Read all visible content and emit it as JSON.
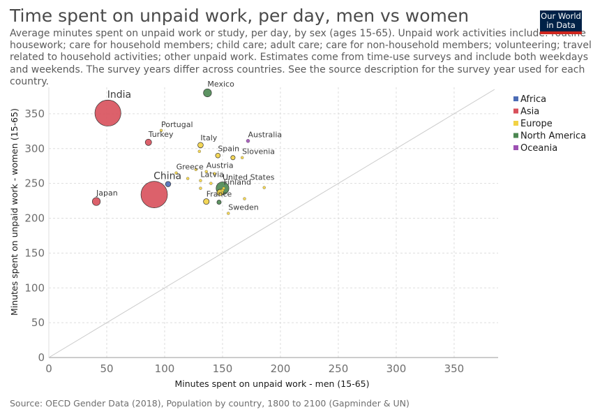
{
  "header": {
    "title": "Time spent on unpaid work, per day, men vs women",
    "subtitle": "Average minutes spent on unpaid work or study, per day, by sex (ages 15-65). Unpaid work activities include: routine housework; care for household members; child care; adult care; care for non-household members; volunteering; travel related to household activities; other unpaid work. Estimates come from time-use surveys and include both weekdays and weekends. The survey years differ across countries. See the source description for the survey year used for each country.",
    "logo_line1": "Our World",
    "logo_line2": "in Data"
  },
  "footer": {
    "source": "Source: OECD Gender Data (2018), Population by country, 1800 to 2100 (Gapminder & UN)"
  },
  "colors": {
    "Africa": "#4c6cb5",
    "Asia": "#d8505b",
    "Europe": "#f2d245",
    "North America": "#4b8751",
    "Oceania": "#9d51b3",
    "reference_line": "#cccccc",
    "grid": "#dddddd"
  },
  "chart_data": {
    "type": "scatter",
    "xlabel": "Minutes spent on unpaid work - men (15-65)",
    "ylabel": "Minutes spent on unpaid work - women (15-65)",
    "xlim": [
      0,
      388
    ],
    "ylim": [
      0,
      388
    ],
    "xticks": [
      0,
      50,
      100,
      150,
      200,
      250,
      300,
      350
    ],
    "yticks": [
      0,
      50,
      100,
      150,
      200,
      250,
      300,
      350
    ],
    "grid": true,
    "reference_line": "y = x",
    "bubble_size": "population",
    "legend_position": "right",
    "legend": [
      "Africa",
      "Asia",
      "Europe",
      "North America",
      "Oceania"
    ],
    "points": [
      {
        "label": "India",
        "region": "Asia",
        "x": 51,
        "y": 351,
        "pop": 1350
      },
      {
        "label": "China",
        "region": "Asia",
        "x": 91,
        "y": 234,
        "pop": 1400
      },
      {
        "label": "Japan",
        "region": "Asia",
        "x": 41,
        "y": 224,
        "pop": 127
      },
      {
        "label": "Turkey",
        "region": "Asia",
        "x": 86,
        "y": 309,
        "pop": 81
      },
      {
        "label": "Mexico",
        "region": "North America",
        "x": 137,
        "y": 380,
        "pop": 129
      },
      {
        "label": "United States",
        "region": "North America",
        "x": 150,
        "y": 243,
        "pop": 327
      },
      {
        "label": "",
        "region": "North America",
        "x": 147,
        "y": 223,
        "pop": 37
      },
      {
        "label": "Australia",
        "region": "Oceania",
        "x": 172,
        "y": 311,
        "pop": 25
      },
      {
        "label": "Portugal",
        "region": "Europe",
        "x": 97,
        "y": 326,
        "pop": 10
      },
      {
        "label": "Italy",
        "region": "Europe",
        "x": 131,
        "y": 305,
        "pop": 60
      },
      {
        "label": "Spain",
        "region": "Europe",
        "x": 146,
        "y": 290,
        "pop": 46
      },
      {
        "label": "Slovenia",
        "region": "Europe",
        "x": 167,
        "y": 287,
        "pop": 2
      },
      {
        "label": "Greece",
        "region": "Europe",
        "x": 110,
        "y": 265,
        "pop": 11
      },
      {
        "label": "Austria",
        "region": "Europe",
        "x": 136,
        "y": 267,
        "pop": 9
      },
      {
        "label": "Latvia",
        "region": "Europe",
        "x": 131,
        "y": 254,
        "pop": 2
      },
      {
        "label": "Finland",
        "region": "Europe",
        "x": 151,
        "y": 243,
        "pop": 5.5
      },
      {
        "label": "France",
        "region": "Europe",
        "x": 136,
        "y": 224,
        "pop": 65
      },
      {
        "label": "Sweden",
        "region": "Europe",
        "x": 155,
        "y": 207,
        "pop": 10
      },
      {
        "label": "",
        "region": "Europe",
        "x": 159,
        "y": 287,
        "pop": 38
      },
      {
        "label": "",
        "region": "Europe",
        "x": 130,
        "y": 296,
        "pop": 5
      },
      {
        "label": "",
        "region": "Europe",
        "x": 148,
        "y": 237,
        "pop": 83
      },
      {
        "label": "",
        "region": "Europe",
        "x": 150,
        "y": 240,
        "pop": 17
      },
      {
        "label": "",
        "region": "Europe",
        "x": 186,
        "y": 244,
        "pop": 5
      },
      {
        "label": "",
        "region": "Europe",
        "x": 169,
        "y": 228,
        "pop": 11
      },
      {
        "label": "",
        "region": "Europe",
        "x": 140,
        "y": 250,
        "pop": 1.3
      },
      {
        "label": "",
        "region": "Europe",
        "x": 127,
        "y": 270,
        "pop": 2.8
      },
      {
        "label": "",
        "region": "Europe",
        "x": 131,
        "y": 243,
        "pop": 1.4
      },
      {
        "label": "",
        "region": "Europe",
        "x": 143,
        "y": 264,
        "pop": 4.8
      },
      {
        "label": "",
        "region": "Europe",
        "x": 120,
        "y": 257,
        "pop": 5.4
      },
      {
        "label": "",
        "region": "Africa",
        "x": 103,
        "y": 249,
        "pop": 57
      }
    ]
  }
}
